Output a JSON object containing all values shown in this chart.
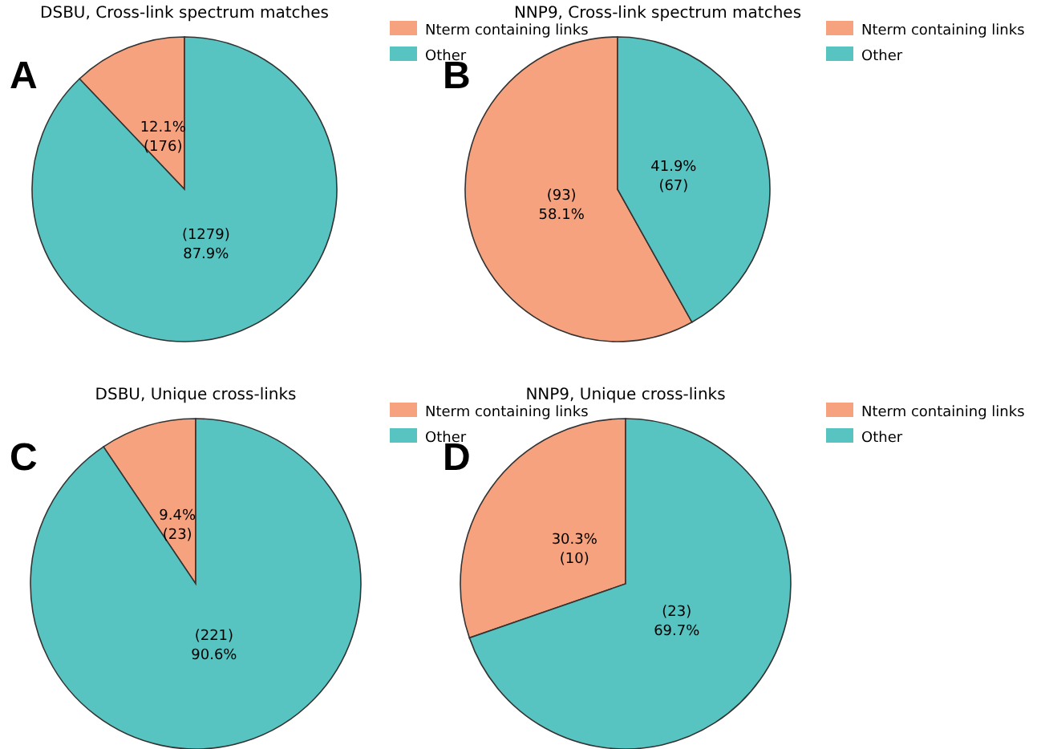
{
  "chart_data": [
    {
      "type": "pie",
      "title": "DSBU, Cross-link spectrum matches",
      "categories": [
        "Nterm containing links",
        "Other"
      ],
      "values": [
        176,
        1279
      ],
      "colors": [
        "#f7a27e",
        "#57c4c1"
      ],
      "value_labels": [
        "12.1%\n(176)",
        "(1279)\n87.9%"
      ],
      "legend": "top right",
      "annotations": [
        "A"
      ]
    },
    {
      "type": "pie",
      "title": "NNP9, Cross-link spectrum matches",
      "categories": [
        "Nterm containing links",
        "Other"
      ],
      "values": [
        93,
        67
      ],
      "colors": [
        "#f7a27e",
        "#57c4c1"
      ],
      "value_labels": [
        "(93)\n58.1%",
        "41.9%\n(67)"
      ],
      "legend": "top right",
      "annotations": [
        "B"
      ]
    },
    {
      "type": "pie",
      "title": "DSBU, Unique cross-links",
      "categories": [
        "Nterm containing links",
        "Other"
      ],
      "values": [
        23,
        221
      ],
      "colors": [
        "#f7a27e",
        "#57c4c1"
      ],
      "value_labels": [
        "9.4%\n(23)",
        "(221)\n90.6%"
      ],
      "legend": "top right",
      "annotations": [
        "C"
      ]
    },
    {
      "type": "pie",
      "title": "NNP9, Unique cross-links",
      "categories": [
        "Nterm containing links",
        "Other"
      ],
      "values": [
        10,
        23
      ],
      "colors": [
        "#f7a27e",
        "#57c4c1"
      ],
      "value_labels": [
        "30.3%\n(10)",
        "(23)\n69.7%"
      ],
      "legend": "top right",
      "annotations": [
        "D"
      ]
    }
  ]
}
